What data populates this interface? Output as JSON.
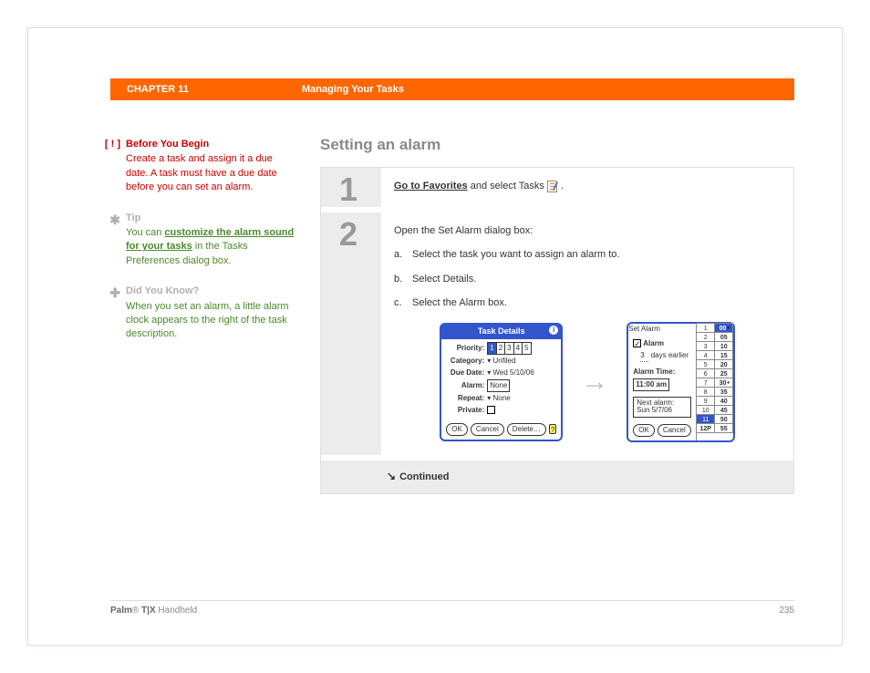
{
  "header": {
    "chapter": "CHAPTER 11",
    "title": "Managing Your Tasks"
  },
  "sidebar": {
    "before": {
      "icon": "[ ! ]",
      "title": "Before You Begin",
      "body": "Create a task and assign it a due date. A task must have a due date before you can set an alarm."
    },
    "tip": {
      "icon": "✱",
      "title": "Tip",
      "body_before": "You can ",
      "link": "customize the alarm sound for your tasks",
      "body_after": " in the Tasks Preferences dialog box."
    },
    "dyk": {
      "icon": "✚",
      "title": "Did You Know?",
      "body": "When you set an alarm, a little alarm clock appears to the right of the task description."
    }
  },
  "main": {
    "title": "Setting an alarm",
    "step1": {
      "num": "1",
      "link": "Go to Favorites",
      "text_after": " and select Tasks ",
      "period": "."
    },
    "step2": {
      "num": "2",
      "intro": "Open the Set Alarm dialog box:",
      "a": "Select the task you want to assign an alarm to.",
      "b": "Select Details.",
      "c": "Select the Alarm box."
    },
    "continued": "Continued"
  },
  "task_details": {
    "title": "Task Details",
    "priority_label": "Priority:",
    "priority_values": [
      "1",
      "2",
      "3",
      "4",
      "5"
    ],
    "priority_selected": 0,
    "category_label": "Category:",
    "category_value": "Unfiled",
    "due_label": "Due Date:",
    "due_value": "Wed 5/10/06",
    "alarm_label": "Alarm:",
    "alarm_value": "None",
    "repeat_label": "Repeat:",
    "repeat_value": "None",
    "private_label": "Private:",
    "buttons": {
      "ok": "OK",
      "cancel": "Cancel",
      "delete": "Delete…"
    }
  },
  "set_alarm": {
    "title": "Set Alarm",
    "alarm_check_label": "Alarm",
    "days_value": "3",
    "days_label": "days earlier",
    "alarm_time_label": "Alarm Time:",
    "alarm_time_value": "11:00 am",
    "next_label": "Next alarm:",
    "next_value": "Sun 5/7/06",
    "hours": [
      "1",
      "2",
      "3",
      "4",
      "5",
      "6",
      "7",
      "8",
      "9",
      "10",
      "11",
      "12P"
    ],
    "hours_selected": 10,
    "minutes": [
      "00",
      "05",
      "10",
      "15",
      "20",
      "25",
      "30",
      "35",
      "40",
      "45",
      "50",
      "55"
    ],
    "minutes_selected": 0,
    "minutes_marked": [
      0,
      6
    ],
    "buttons": {
      "ok": "OK",
      "cancel": "Cancel"
    }
  },
  "footer": {
    "brand_bold": "Palm",
    "brand_reg": "®",
    "brand_model": " T|X ",
    "brand_rest": "Handheld",
    "page": "235"
  },
  "colors": {
    "orange": "#ff6600",
    "red": "#cc0000",
    "green": "#4a8a2a",
    "blue": "#3355cc",
    "grey_bg": "#ececec",
    "grey_text": "#8a8a8a"
  }
}
